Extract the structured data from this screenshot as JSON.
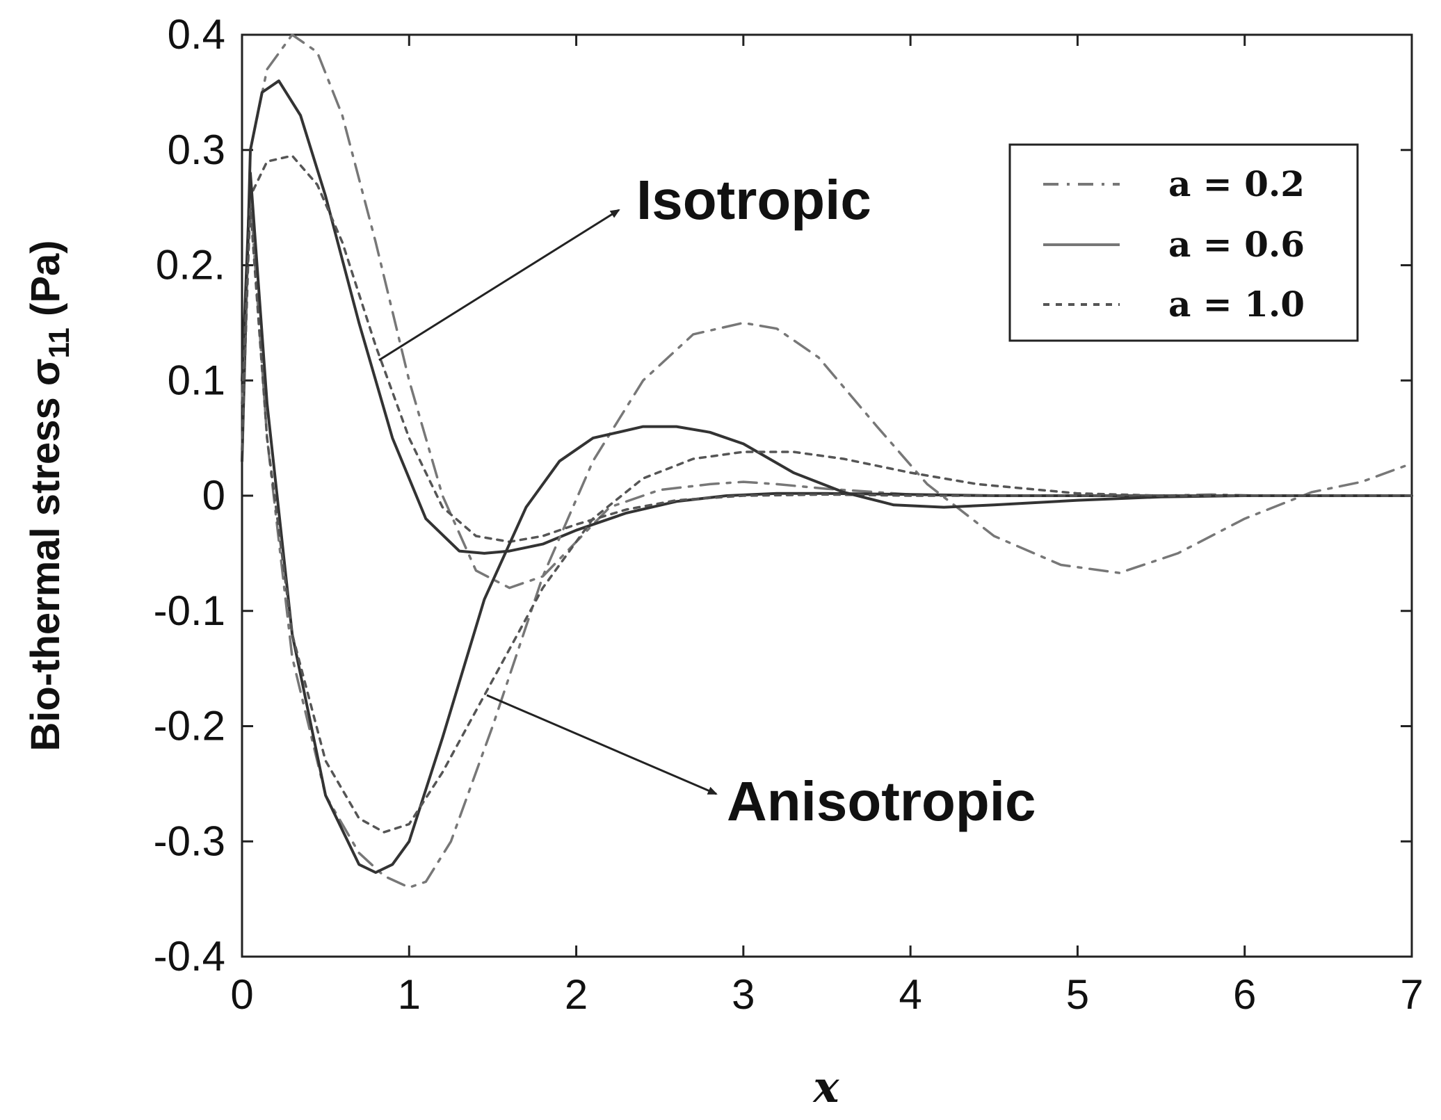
{
  "chart_data": {
    "type": "line",
    "xlabel": "x",
    "ylabel": "Bio-thermal stress σ",
    "ylabel_subscript": "11",
    "ylabel_unit": " (Pa)",
    "xlim": [
      0,
      7
    ],
    "ylim": [
      -0.4,
      0.4
    ],
    "xticks": [
      "0",
      "1",
      "2",
      "3",
      "4",
      "5",
      "6",
      "7"
    ],
    "yticks": [
      "-0.4",
      "-0.3",
      "-0.2",
      "-0.1",
      "0",
      "0.1",
      "0.2.",
      "0.3",
      "0.4"
    ],
    "grid": false,
    "legend_position": "top-right",
    "annotations": [
      {
        "text": "Isotropic",
        "arrow_to": "isotropic curves",
        "label_near": [
          2.4,
          0.25
        ]
      },
      {
        "text": "Anisotropic",
        "arrow_to": "anisotropic curves",
        "label_near": [
          2.9,
          -0.27
        ]
      }
    ],
    "series": [
      {
        "name": "a = 0.2",
        "legend_label": "a = 0.2",
        "style": "dashdot",
        "group": "Isotropic",
        "x": [
          0,
          0.05,
          0.15,
          0.3,
          0.45,
          0.6,
          0.8,
          1.0,
          1.2,
          1.4,
          1.6,
          1.8,
          2.0,
          2.2,
          2.5,
          2.8,
          3.0,
          3.2,
          3.5,
          3.8,
          4.0,
          4.3,
          4.6,
          4.9,
          5.2,
          5.5,
          5.8,
          6.1,
          6.4,
          6.7,
          7.0
        ],
        "y": [
          0.04,
          0.3,
          0.37,
          0.4,
          0.385,
          0.33,
          0.22,
          0.1,
          0.0,
          -0.065,
          -0.08,
          -0.07,
          -0.04,
          -0.01,
          0.005,
          0.01,
          0.012,
          0.01,
          0.006,
          0.003,
          0.001,
          0.0,
          0.0,
          0.0,
          0.0,
          0.0,
          0.001,
          0.0,
          0.0,
          0.0,
          0.0
        ]
      },
      {
        "name": "a = 0.6",
        "legend_label": "a = 0.6",
        "style": "solid",
        "group": "Isotropic",
        "x": [
          0,
          0.05,
          0.12,
          0.22,
          0.35,
          0.5,
          0.7,
          0.9,
          1.1,
          1.3,
          1.45,
          1.6,
          1.8,
          2.0,
          2.3,
          2.6,
          2.9,
          3.2,
          3.5,
          4.0,
          4.5,
          5.0,
          5.5,
          6.0,
          6.5,
          7.0
        ],
        "y": [
          0.03,
          0.3,
          0.35,
          0.36,
          0.33,
          0.26,
          0.15,
          0.05,
          -0.02,
          -0.048,
          -0.05,
          -0.048,
          -0.042,
          -0.03,
          -0.015,
          -0.005,
          0.0,
          0.002,
          0.002,
          0.001,
          0.0,
          0.0,
          0.0,
          0.0,
          0.0,
          0.0
        ]
      },
      {
        "name": "a = 1.0",
        "legend_label": "a = 1.0",
        "style": "dotted",
        "group": "Isotropic",
        "x": [
          0,
          0.05,
          0.15,
          0.3,
          0.45,
          0.6,
          0.8,
          1.0,
          1.2,
          1.4,
          1.6,
          1.8,
          2.0,
          2.3,
          2.6,
          3.0,
          3.5,
          4.0,
          5.0,
          6.0,
          7.0
        ],
        "y": [
          0.04,
          0.26,
          0.29,
          0.295,
          0.27,
          0.22,
          0.13,
          0.05,
          -0.01,
          -0.035,
          -0.04,
          -0.035,
          -0.025,
          -0.012,
          -0.004,
          0.0,
          0.001,
          0.0,
          0.0,
          0.0,
          0.0
        ]
      },
      {
        "name": "a = 0.2",
        "style": "dashdot",
        "group": "Anisotropic",
        "x": [
          0,
          0.05,
          0.15,
          0.3,
          0.5,
          0.7,
          0.85,
          1.0,
          1.1,
          1.25,
          1.5,
          1.8,
          2.1,
          2.4,
          2.7,
          3.0,
          3.2,
          3.45,
          3.8,
          4.1,
          4.5,
          4.9,
          5.25,
          5.6,
          6.0,
          6.4,
          6.7,
          7.0
        ],
        "y": [
          0.08,
          0.26,
          0.05,
          -0.14,
          -0.26,
          -0.31,
          -0.33,
          -0.34,
          -0.335,
          -0.3,
          -0.2,
          -0.07,
          0.03,
          0.1,
          0.14,
          0.15,
          0.145,
          0.12,
          0.06,
          0.01,
          -0.035,
          -0.06,
          -0.067,
          -0.05,
          -0.02,
          0.003,
          0.012,
          0.028
        ]
      },
      {
        "name": "a = 0.6",
        "style": "solid",
        "group": "Anisotropic",
        "x": [
          0,
          0.05,
          0.15,
          0.3,
          0.5,
          0.7,
          0.8,
          0.9,
          1.0,
          1.2,
          1.45,
          1.7,
          1.9,
          2.1,
          2.4,
          2.6,
          2.8,
          3.0,
          3.3,
          3.6,
          3.9,
          4.2,
          4.5,
          5.0,
          5.5,
          6.0,
          7.0
        ],
        "y": [
          0.1,
          0.28,
          0.08,
          -0.12,
          -0.26,
          -0.32,
          -0.327,
          -0.32,
          -0.3,
          -0.21,
          -0.09,
          -0.01,
          0.03,
          0.05,
          0.06,
          0.06,
          0.055,
          0.045,
          0.02,
          0.003,
          -0.008,
          -0.01,
          -0.008,
          -0.004,
          -0.001,
          0.0,
          0.0
        ]
      },
      {
        "name": "a = 1.0",
        "style": "dotted",
        "group": "Anisotropic",
        "x": [
          0,
          0.05,
          0.15,
          0.3,
          0.5,
          0.7,
          0.85,
          1.0,
          1.2,
          1.5,
          1.8,
          2.1,
          2.4,
          2.7,
          3.0,
          3.3,
          3.6,
          4.0,
          4.4,
          5.0,
          5.5,
          6.0,
          7.0
        ],
        "y": [
          0.08,
          0.25,
          0.05,
          -0.12,
          -0.23,
          -0.28,
          -0.292,
          -0.285,
          -0.24,
          -0.16,
          -0.08,
          -0.02,
          0.015,
          0.032,
          0.038,
          0.038,
          0.032,
          0.02,
          0.01,
          0.002,
          0.0,
          0.0,
          0.0
        ]
      }
    ]
  }
}
